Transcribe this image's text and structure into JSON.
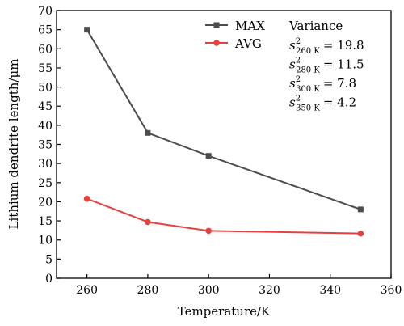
{
  "chart_data": {
    "type": "line",
    "xlabel": "Temperature/K",
    "ylabel": "Lithium dendrite length/μm",
    "xlim": [
      250,
      360
    ],
    "ylim": [
      0,
      70
    ],
    "x_ticks": [
      260,
      280,
      300,
      320,
      340,
      360
    ],
    "y_ticks": [
      0,
      5,
      10,
      15,
      20,
      25,
      30,
      35,
      40,
      45,
      50,
      55,
      60,
      65,
      70
    ],
    "grid": false,
    "legend_position": "top-right",
    "series": [
      {
        "name": "MAX",
        "color": "#4d4d4d",
        "marker": "square",
        "points": [
          {
            "x": 260,
            "y": 65
          },
          {
            "x": 280,
            "y": 38
          },
          {
            "x": 300,
            "y": 32
          },
          {
            "x": 350,
            "y": 18
          }
        ]
      },
      {
        "name": "AVG",
        "color": "#e8413d",
        "marker": "circle",
        "points": [
          {
            "x": 260,
            "y": 20.8
          },
          {
            "x": 280,
            "y": 14.7
          },
          {
            "x": 300,
            "y": 12.4
          },
          {
            "x": 350,
            "y": 11.7
          }
        ]
      }
    ],
    "annotation": {
      "title": "Variance",
      "items": [
        {
          "symbol": "s",
          "power": "2",
          "subscript": "260 K",
          "value": "= 19.8"
        },
        {
          "symbol": "s",
          "power": "2",
          "subscript": "280 K",
          "value": "= 11.5"
        },
        {
          "symbol": "s",
          "power": "2",
          "subscript": "300 K",
          "value": "= 7.8"
        },
        {
          "symbol": "s",
          "power": "2",
          "subscript": "350 K",
          "value": "= 4.2"
        }
      ]
    }
  }
}
